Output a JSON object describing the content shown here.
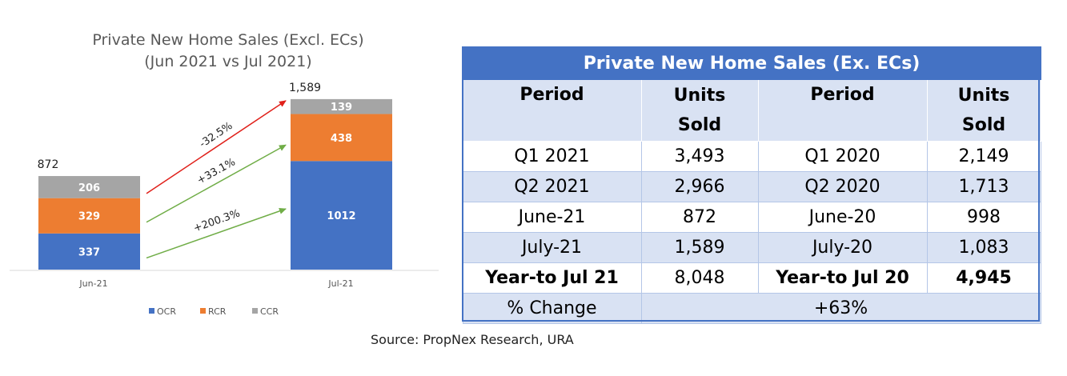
{
  "chart_data": {
    "type": "bar",
    "stacked": true,
    "title": "Private New Home Sales (Excl. ECs)",
    "subtitle": "(Jun 2021 vs Jul 2021)",
    "categories": [
      "Jun-21",
      "Jul-21"
    ],
    "totals": [
      "872",
      "1,589"
    ],
    "series": [
      {
        "name": "OCR",
        "values": [
          337,
          1012
        ],
        "color": "#4472c4"
      },
      {
        "name": "RCR",
        "values": [
          329,
          438
        ],
        "color": "#ed7d31"
      },
      {
        "name": "CCR",
        "values": [
          206,
          139
        ],
        "color": "#a5a5a5"
      }
    ],
    "annotations": [
      {
        "text": "-32.5%",
        "series": "CCR",
        "color": "#e0201a"
      },
      {
        "text": "+33.1%",
        "series": "RCR",
        "color": "#70ad47"
      },
      {
        "text": "+200.3%",
        "series": "OCR",
        "color": "#70ad47"
      }
    ],
    "legend_position": "bottom",
    "ylim": [
      0,
      1700
    ],
    "grid": false
  },
  "table": {
    "title": "Private New Home Sales (Ex. ECs)",
    "header": {
      "col1": "Period",
      "col2_line1": "Units",
      "col2_line2": "Sold",
      "col3": "Period",
      "col4_line1": "Units",
      "col4_line2": "Sold"
    },
    "rows": [
      {
        "p1": "Q1 2021",
        "u1": "3,493",
        "p2": "Q1 2020",
        "u2": "2,149"
      },
      {
        "p1": "Q2 2021",
        "u1": "2,966",
        "p2": "Q2 2020",
        "u2": "1,713"
      },
      {
        "p1": "June-21",
        "u1": "872",
        "p2": "June-20",
        "u2": "998"
      },
      {
        "p1": "July-21",
        "u1": "1,589",
        "p2": "July-20",
        "u2": "1,083"
      },
      {
        "p1": "Year-to Jul 21",
        "u1": "8,048",
        "p2": "Year-to Jul 20",
        "u2": "4,945"
      }
    ],
    "change_label": "% Change",
    "change_value": "+63%"
  },
  "source": "Source: PropNex Research, URA"
}
